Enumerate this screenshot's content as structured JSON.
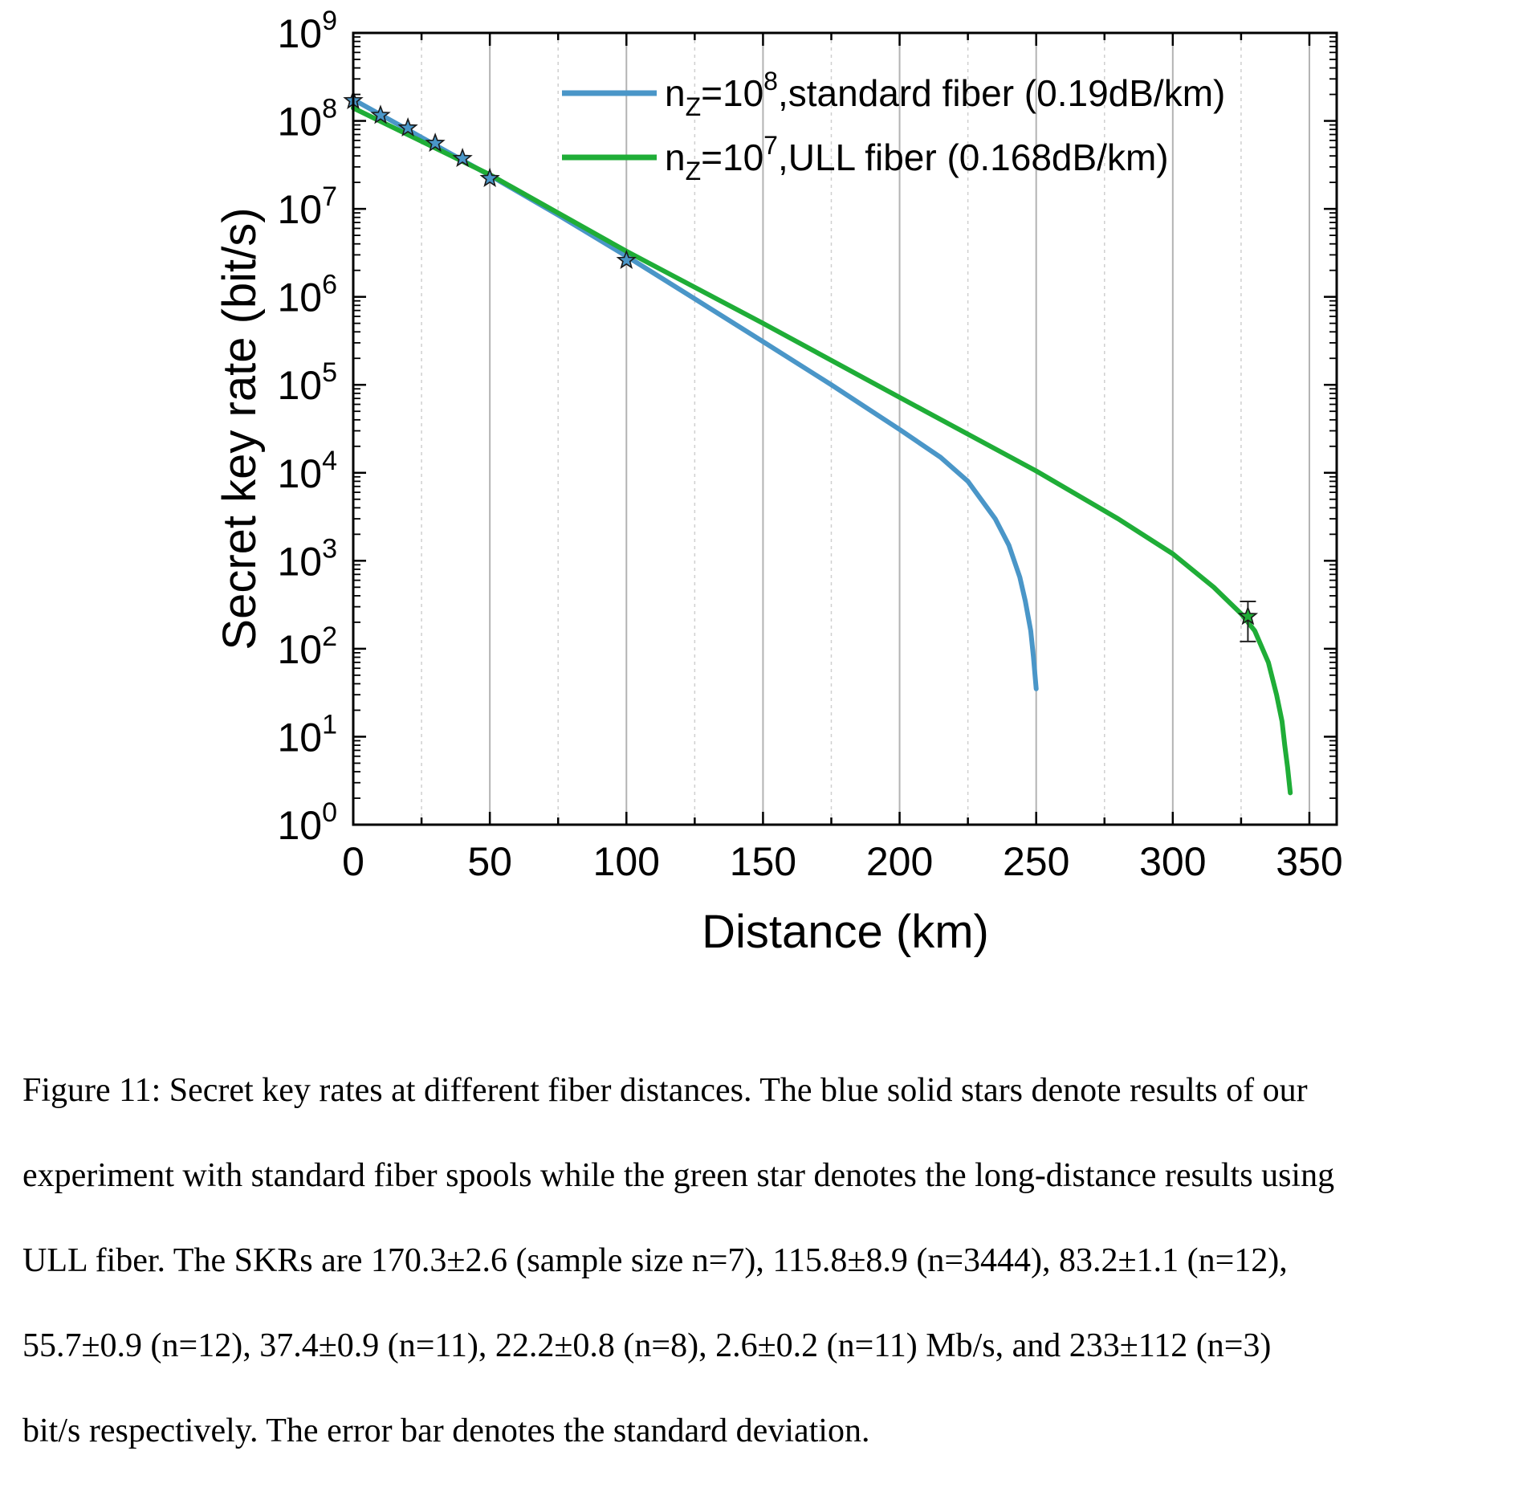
{
  "chart_data": {
    "type": "line",
    "xlabel": "Distance (km)",
    "ylabel": "Secret key rate (bit/s)",
    "xlim": [
      0,
      360
    ],
    "ylim_log10": [
      0,
      9
    ],
    "yscale": "log",
    "x_ticks": [
      "0",
      "50",
      "100",
      "150",
      "200",
      "250",
      "300",
      "350"
    ],
    "y_ticks": [
      {
        "base": "10",
        "exp": "0"
      },
      {
        "base": "10",
        "exp": "1"
      },
      {
        "base": "10",
        "exp": "2"
      },
      {
        "base": "10",
        "exp": "3"
      },
      {
        "base": "10",
        "exp": "4"
      },
      {
        "base": "10",
        "exp": "5"
      },
      {
        "base": "10",
        "exp": "6"
      },
      {
        "base": "10",
        "exp": "7"
      },
      {
        "base": "10",
        "exp": "8"
      },
      {
        "base": "10",
        "exp": "9"
      }
    ],
    "grid": "vertical",
    "legend_position": "top-right",
    "series": [
      {
        "name": "nZ=10^8,standard fiber (0.19dB/km)",
        "legend_main": "n",
        "legend_sub": "Z",
        "legend_eq": "=10",
        "legend_sup": "8",
        "legend_rest": ",standard fiber (0.19dB/km)",
        "color": "#4a96c8",
        "x": [
          0,
          25,
          50,
          75,
          100,
          125,
          150,
          175,
          200,
          215,
          225,
          235,
          240,
          244,
          246,
          248,
          249,
          250
        ],
        "y": [
          175000000.0,
          65000000.0,
          24000000.0,
          8500000.0,
          2900000.0,
          950000.0,
          310000.0,
          100000.0,
          31000.0,
          15000.0,
          8000.0,
          3000.0,
          1500.0,
          650.0,
          350.0,
          160.0,
          80.0,
          35.0
        ]
      },
      {
        "name": "nZ=10^7,ULL fiber (0.168dB/km)",
        "legend_main": "n",
        "legend_sub": "Z",
        "legend_eq": "=10",
        "legend_sup": "7",
        "legend_rest": ",ULL fiber (0.168dB/km)",
        "color": "#1fad37",
        "x": [
          0,
          50,
          100,
          150,
          200,
          250,
          280,
          300,
          315,
          325,
          330,
          335,
          338,
          340,
          341,
          342,
          343
        ],
        "y": [
          140000000.0,
          24500000.0,
          3300000.0,
          500000.0,
          72000.0,
          10500.0,
          3000.0,
          1200.0,
          500.0,
          250.0,
          160.0,
          70.0,
          30.0,
          15.0,
          8.0,
          4.5,
          2.3
        ]
      }
    ],
    "markers": [
      {
        "series": "standard fiber",
        "color": "#4a96c8",
        "x": 0,
        "y": 170300000.0
      },
      {
        "series": "standard fiber",
        "color": "#4a96c8",
        "x": 10,
        "y": 115800000.0
      },
      {
        "series": "standard fiber",
        "color": "#4a96c8",
        "x": 20,
        "y": 83200000.0
      },
      {
        "series": "standard fiber",
        "color": "#4a96c8",
        "x": 30,
        "y": 55700000.0
      },
      {
        "series": "standard fiber",
        "color": "#4a96c8",
        "x": 40,
        "y": 37400000.0
      },
      {
        "series": "standard fiber",
        "color": "#4a96c8",
        "x": 50,
        "y": 22200000.0
      },
      {
        "series": "standard fiber",
        "color": "#4a96c8",
        "x": 100,
        "y": 2600000.0
      },
      {
        "series": "ULL fiber",
        "color": "#1fad37",
        "x": 327.5,
        "y": 233,
        "err_low": 121,
        "err_high": 345
      }
    ]
  },
  "caption": {
    "lines": [
      "Figure 11: Secret key rates at different fiber distances. The blue solid stars denote results of our",
      "experiment with standard fiber spools while the green star denotes the long-distance results using",
      "ULL fiber. The SKRs are 170.3±2.6 (sample size n=7), 115.8±8.9 (n=3444), 83.2±1.1 (n=12),",
      "55.7±0.9 (n=12), 37.4±0.9 (n=11), 22.2±0.8 (n=8), 2.6±0.2 (n=11) Mb/s, and 233±112 (n=3)",
      "bit/s respectively. The error bar denotes the standard deviation."
    ]
  }
}
